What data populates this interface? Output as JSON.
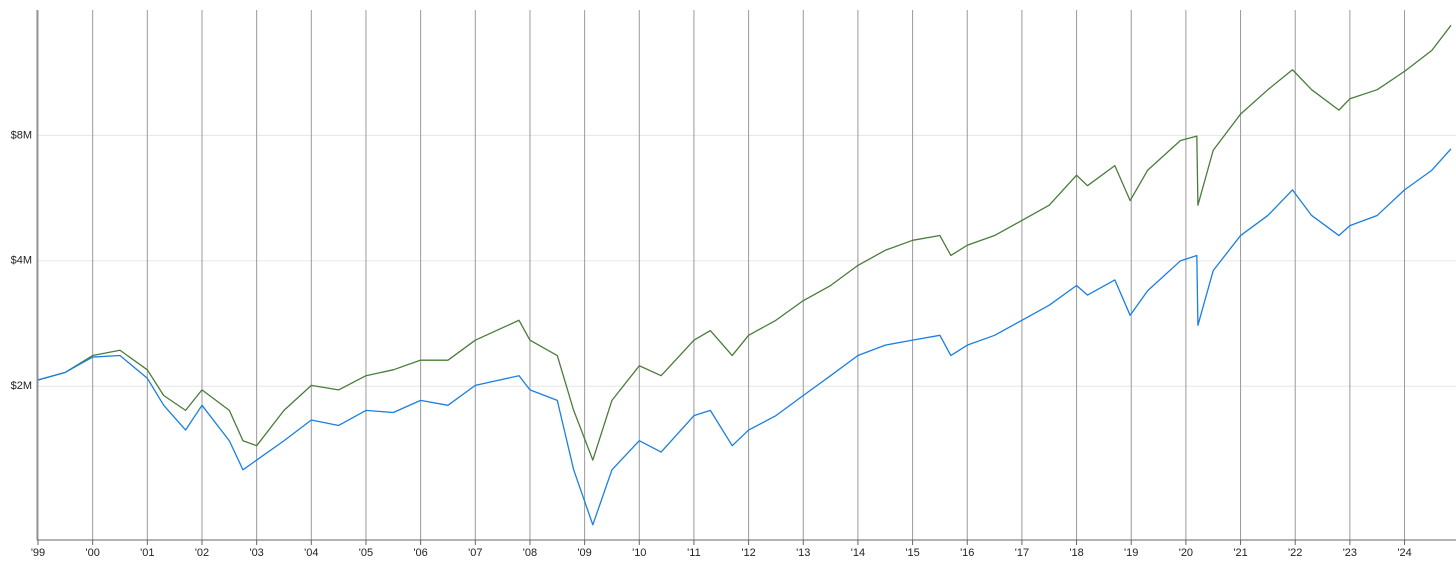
{
  "chart_data": {
    "type": "line",
    "yscale": "log",
    "grid": true,
    "x": [
      1999.0,
      1999.5,
      2000.0,
      2000.5,
      2001.0,
      2001.3,
      2001.7,
      2002.0,
      2002.5,
      2002.75,
      2003.0,
      2003.5,
      2004.0,
      2004.5,
      2005.0,
      2005.5,
      2006.0,
      2006.5,
      2007.0,
      2007.8,
      2008.0,
      2008.5,
      2008.8,
      2009.15,
      2009.5,
      2010.0,
      2010.4,
      2011.0,
      2011.3,
      2011.7,
      2012.0,
      2012.5,
      2013.0,
      2013.5,
      2014.0,
      2014.5,
      2015.0,
      2015.5,
      2015.7,
      2016.0,
      2016.5,
      2017.0,
      2017.5,
      2018.0,
      2018.2,
      2018.7,
      2018.98,
      2019.3,
      2019.9,
      2020.2,
      2020.22,
      2020.5,
      2021.0,
      2021.5,
      2021.95,
      2022.3,
      2022.8,
      2023.0,
      2023.5,
      2024.0,
      2024.5,
      2024.85
    ],
    "series": [
      {
        "color": "#4a7c3a",
        "values": [
          2070000,
          2160000,
          2370000,
          2440000,
          2190000,
          1900000,
          1750000,
          1960000,
          1750000,
          1480000,
          1440000,
          1750000,
          2010000,
          1960000,
          2120000,
          2190000,
          2310000,
          2310000,
          2580000,
          2880000,
          2580000,
          2370000,
          1750000,
          1330000,
          1850000,
          2240000,
          2120000,
          2580000,
          2720000,
          2370000,
          2650000,
          2880000,
          3210000,
          3490000,
          3900000,
          4240000,
          4480000,
          4600000,
          4120000,
          4360000,
          4600000,
          5000000,
          5440000,
          6420000,
          6060000,
          6770000,
          5580000,
          6600000,
          7780000,
          7970000,
          5440000,
          7370000,
          9000000,
          10300000,
          11500000,
          10300000,
          9200000,
          9800000,
          10300000,
          11400000,
          12800000,
          14700000
        ]
      },
      {
        "color": "#1a7fe3",
        "values": [
          2070000,
          2160000,
          2350000,
          2370000,
          2090000,
          1800000,
          1570000,
          1800000,
          1480000,
          1260000,
          1330000,
          1480000,
          1660000,
          1610000,
          1750000,
          1730000,
          1850000,
          1800000,
          2010000,
          2120000,
          1960000,
          1850000,
          1260000,
          930000,
          1260000,
          1480000,
          1390000,
          1700000,
          1750000,
          1440000,
          1570000,
          1700000,
          1900000,
          2120000,
          2370000,
          2510000,
          2580000,
          2650000,
          2370000,
          2510000,
          2650000,
          2880000,
          3130000,
          3490000,
          3310000,
          3600000,
          2960000,
          3390000,
          4000000,
          4120000,
          2800000,
          3790000,
          4600000,
          5140000,
          5920000,
          5140000,
          4600000,
          4860000,
          5140000,
          5920000,
          6600000,
          7430000
        ]
      }
    ],
    "xlim": [
      1999,
      2024.85
    ],
    "xticks": [
      {
        "value": 1999,
        "label": "'99"
      },
      {
        "value": 2000,
        "label": "'00"
      },
      {
        "value": 2001,
        "label": "'01"
      },
      {
        "value": 2002,
        "label": "'02"
      },
      {
        "value": 2003,
        "label": "'03"
      },
      {
        "value": 2004,
        "label": "'04"
      },
      {
        "value": 2005,
        "label": "'05"
      },
      {
        "value": 2006,
        "label": "'06"
      },
      {
        "value": 2007,
        "label": "'07"
      },
      {
        "value": 2008,
        "label": "'08"
      },
      {
        "value": 2009,
        "label": "'09"
      },
      {
        "value": 2010,
        "label": "'10"
      },
      {
        "value": 2011,
        "label": "'11"
      },
      {
        "value": 2012,
        "label": "'12"
      },
      {
        "value": 2013,
        "label": "'13"
      },
      {
        "value": 2014,
        "label": "'14"
      },
      {
        "value": 2015,
        "label": "'15"
      },
      {
        "value": 2016,
        "label": "'16"
      },
      {
        "value": 2017,
        "label": "'17"
      },
      {
        "value": 2018,
        "label": "'18"
      },
      {
        "value": 2019,
        "label": "'19"
      },
      {
        "value": 2020,
        "label": "'20"
      },
      {
        "value": 2021,
        "label": "'21"
      },
      {
        "value": 2022,
        "label": "'22"
      },
      {
        "value": 2023,
        "label": "'23"
      },
      {
        "value": 2024,
        "label": "'24"
      }
    ],
    "ylim": [
      855000,
      16000000
    ],
    "yticks": [
      {
        "value": 2000000,
        "label": "$2M"
      },
      {
        "value": 4000000,
        "label": "$4M"
      },
      {
        "value": 8000000,
        "label": "$8M"
      }
    ]
  }
}
